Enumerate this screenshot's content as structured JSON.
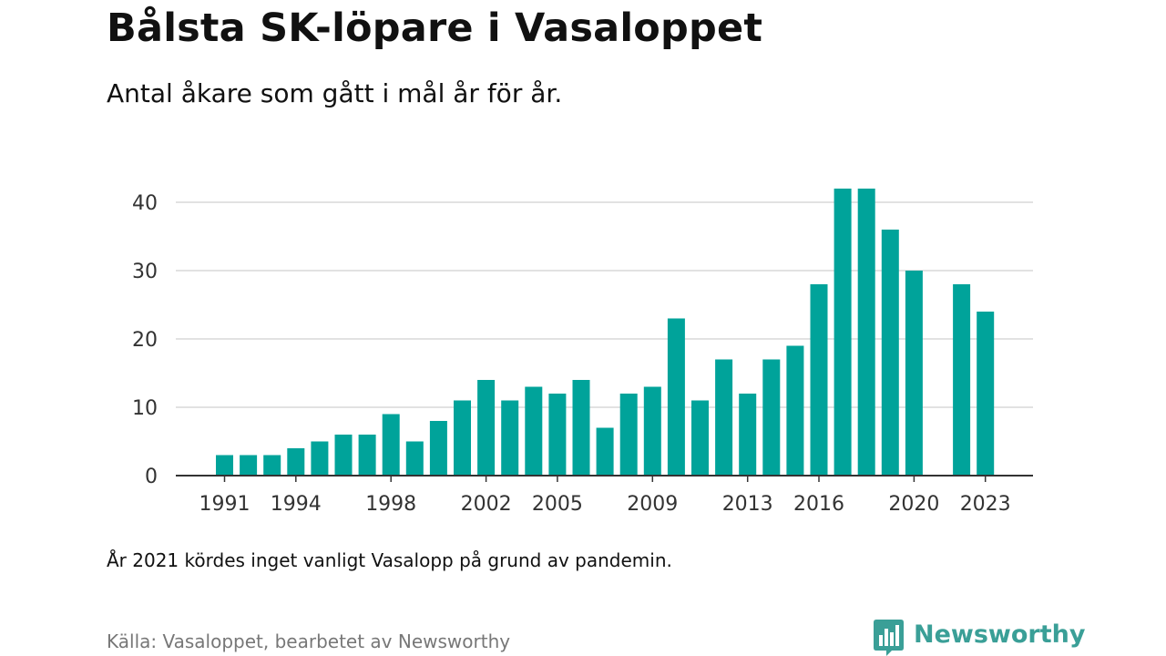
{
  "header": {
    "title": "Bålsta SK-löpare i Vasaloppet",
    "subtitle": "Antal åkare som gått i mål år för år."
  },
  "footer": {
    "note": "År 2021 kördes inget vanligt Vasalopp på grund av pandemin.",
    "source": "Källa: Vasaloppet, bearbetet av Newsworthy",
    "logo_text": "Newsworthy"
  },
  "colors": {
    "bar": "#00a39a",
    "grid": "#d9d9d9",
    "axis": "#333333",
    "logo": "#3a9f97"
  },
  "chart_data": {
    "type": "bar",
    "title": "Bålsta SK-löpare i Vasaloppet",
    "subtitle": "Antal åkare som gått i mål år för år.",
    "xlabel": "",
    "ylabel": "",
    "ylim": [
      0,
      40
    ],
    "yticks": [
      0,
      10,
      20,
      30,
      40
    ],
    "xticks": [
      1991,
      1994,
      1998,
      2002,
      2005,
      2009,
      2013,
      2016,
      2020,
      2023
    ],
    "grid": true,
    "categories": [
      1991,
      1992,
      1993,
      1994,
      1995,
      1996,
      1997,
      1998,
      1999,
      2000,
      2001,
      2002,
      2003,
      2004,
      2005,
      2006,
      2007,
      2008,
      2009,
      2010,
      2011,
      2012,
      2013,
      2014,
      2015,
      2016,
      2017,
      2018,
      2019,
      2020,
      2021,
      2022,
      2023
    ],
    "values": [
      3,
      3,
      3,
      4,
      5,
      6,
      6,
      9,
      5,
      8,
      11,
      14,
      11,
      13,
      12,
      14,
      7,
      12,
      13,
      23,
      11,
      17,
      12,
      17,
      19,
      28,
      42,
      42,
      36,
      30,
      null,
      28,
      24
    ]
  }
}
